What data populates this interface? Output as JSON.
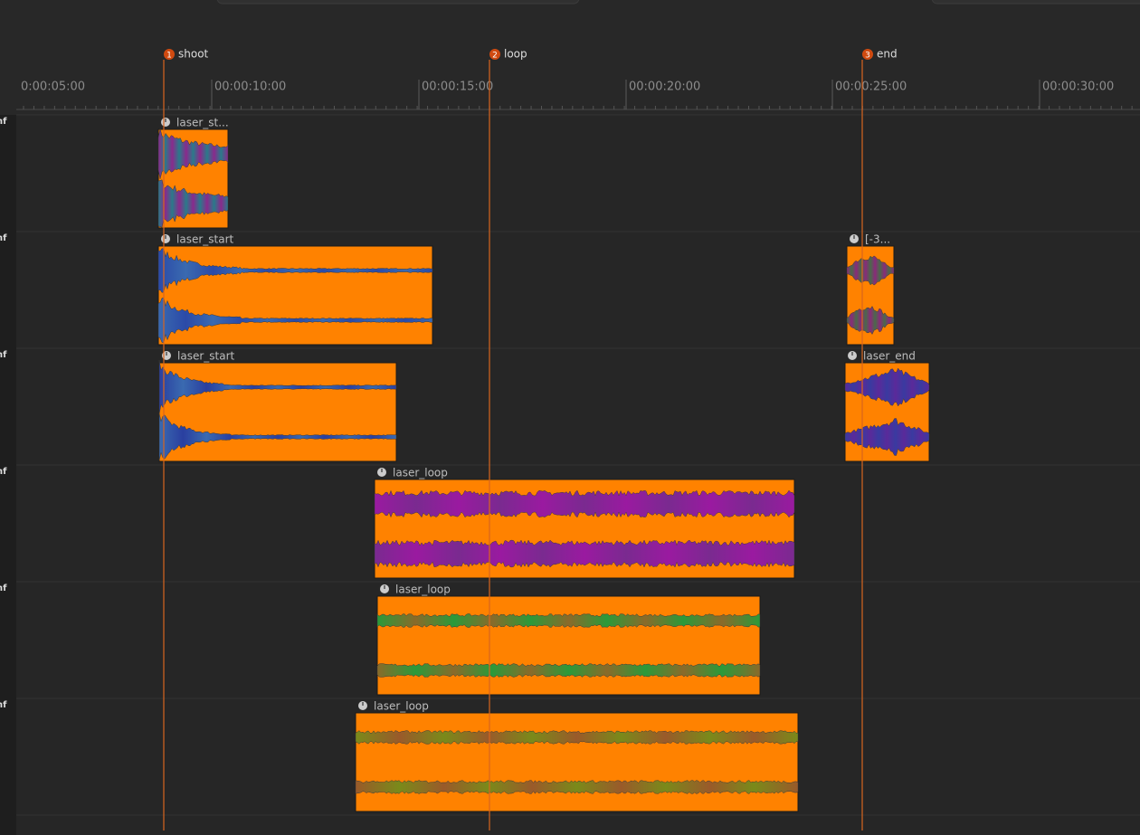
{
  "markers": [
    {
      "number": "1",
      "label": "shoot"
    },
    {
      "number": "2",
      "label": "loop"
    },
    {
      "number": "3",
      "label": "end"
    }
  ],
  "ruler": [
    "0:00:05:00",
    "00:00:10:00",
    "00:00:15:00",
    "00:00:20:00",
    "00:00:25:00",
    "00:00:30:00"
  ],
  "tracks": [
    {
      "level": "nf",
      "clips": [
        {
          "label": "laser_st..."
        }
      ]
    },
    {
      "level": "nf",
      "clips": [
        {
          "label": "laser_start"
        },
        {
          "label": "[-3..."
        }
      ]
    },
    {
      "level": "nf",
      "clips": [
        {
          "label": "laser_start"
        },
        {
          "label": "laser_end"
        }
      ]
    },
    {
      "level": "nf",
      "clips": [
        {
          "label": "laser_loop"
        }
      ]
    },
    {
      "level": "nf",
      "clips": [
        {
          "label": "laser_loop"
        }
      ]
    },
    {
      "level": "nf",
      "clips": [
        {
          "label": "laser_loop"
        }
      ]
    }
  ]
}
